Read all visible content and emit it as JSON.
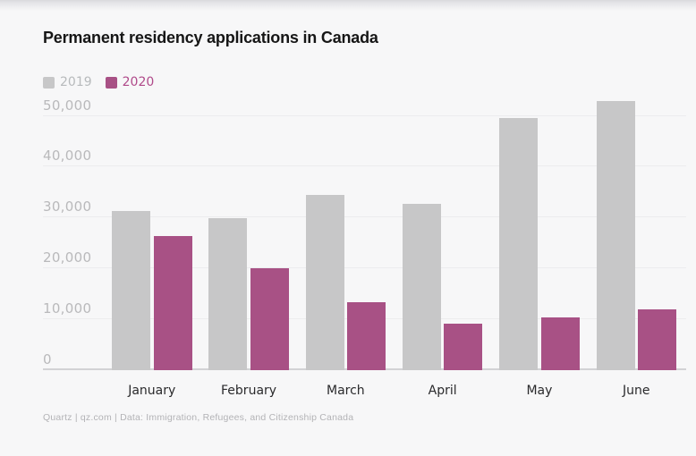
{
  "page": {
    "title": "Permanent residency applications in Canada",
    "source": "Quartz | qz.com | Data: Immigration, Refugees, and Citizenship Canada",
    "background_color": "#f7f7f8"
  },
  "legend": {
    "items": [
      {
        "label": "2019",
        "swatch_color": "#c7c7c8",
        "text_color": "#b7babc"
      },
      {
        "label": "2020",
        "swatch_color": "#a85185",
        "text_color": "#b04a8a"
      }
    ]
  },
  "chart_data": {
    "type": "bar",
    "title": "Permanent residency applications in Canada",
    "categories": [
      "January",
      "February",
      "March",
      "April",
      "May",
      "June"
    ],
    "series": [
      {
        "name": "2019",
        "color": "#c7c7c8",
        "values": [
          31300,
          29800,
          34400,
          32700,
          49600,
          52900
        ]
      },
      {
        "name": "2020",
        "color": "#a85185",
        "values": [
          26400,
          20000,
          13400,
          9200,
          10300,
          11900
        ]
      }
    ],
    "y_ticks": [
      {
        "value": 0,
        "label": "0"
      },
      {
        "value": 10000,
        "label": "10,000"
      },
      {
        "value": 20000,
        "label": "20,000"
      },
      {
        "value": 30000,
        "label": "30,000"
      },
      {
        "value": 40000,
        "label": "40,000"
      },
      {
        "value": 50000,
        "label": "50,000"
      }
    ],
    "ylim": [
      0,
      50000
    ],
    "xlabel": "",
    "ylabel": "",
    "grid": "horizontal",
    "legend_position": "top-left",
    "source": "Quartz | qz.com | Data: Immigration, Refugees, and Citizenship Canada"
  }
}
